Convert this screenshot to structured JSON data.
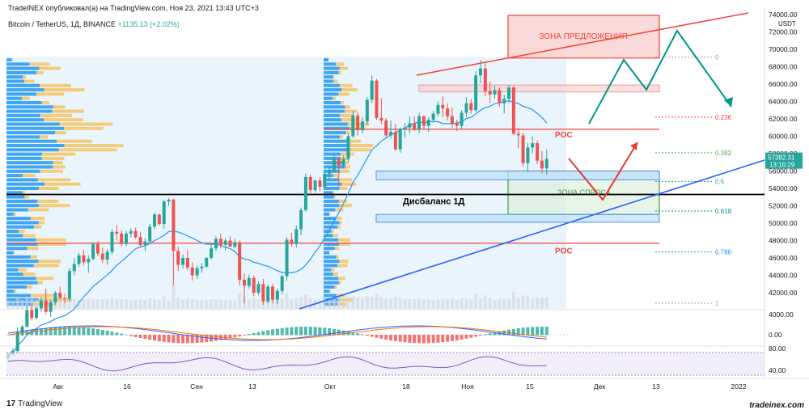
{
  "header": {
    "published_line": "TradeINEX опубликовал(а) на TradingView.com, Ноя 23, 2021 13:43 UTC+3",
    "symbol": "Bitcoin / TetherUS, 1Д, BINANCE",
    "change": "+1135.13 (+2.02%)"
  },
  "footer": {
    "brand": "TradingView",
    "watermark": "tradeinex.com"
  },
  "colors": {
    "up": "#26a69a",
    "down": "#ef5350",
    "ma": "#2196f3",
    "trend_red": "#f44336",
    "trend_blue": "#2962ff",
    "forecast_teal": "#009688",
    "forecast_red": "#e53935",
    "vp_blue": "#2196f3",
    "vp_yellow": "#f4c76a"
  },
  "chart_data": {
    "type": "candlestick",
    "price_axis": {
      "unit": "USDT",
      "ticks": [
        74000,
        72000,
        70000,
        68000,
        66000,
        64000,
        62000,
        60000,
        58000,
        56000,
        54000,
        52000,
        50000,
        48000,
        46000,
        44000,
        42000
      ],
      "tick_labels": [
        "74000.00",
        "72000.00",
        "70000.00",
        "68000.00",
        "66000.00",
        "64000.00",
        "62000.00",
        "60000.00",
        "58000.00",
        "56000.00",
        "54000.00",
        "52000.00",
        "50000.00",
        "48000.00",
        "46000.00",
        "44000.00",
        "42000.00"
      ]
    },
    "time_axis": [
      "Авг",
      "16",
      "Сен",
      "13",
      "Окт",
      "18",
      "Ноя",
      "15",
      "Дек",
      "13",
      "2022"
    ],
    "last_price": {
      "label": "57382.31",
      "countdown": "13:16:29",
      "value": 57382.31
    },
    "candles": [
      [
        34500,
        35100,
        34000,
        34900
      ],
      [
        34900,
        35600,
        34700,
        35300
      ],
      [
        35300,
        38000,
        35000,
        37500
      ],
      [
        37500,
        38300,
        37000,
        38100
      ],
      [
        38100,
        40500,
        38000,
        40000
      ],
      [
        40000,
        40700,
        38800,
        39100
      ],
      [
        39100,
        40400,
        38900,
        40200
      ],
      [
        40200,
        41500,
        39800,
        41100
      ],
      [
        41100,
        42500,
        39500,
        39800
      ],
      [
        39800,
        41200,
        39200,
        40900
      ],
      [
        40900,
        42200,
        40600,
        42000
      ],
      [
        42000,
        42700,
        41200,
        41400
      ],
      [
        41400,
        41900,
        40800,
        41300
      ],
      [
        41300,
        44800,
        41000,
        44500
      ],
      [
        44500,
        46000,
        44000,
        45300
      ],
      [
        45300,
        46600,
        45000,
        46300
      ],
      [
        46300,
        46900,
        45100,
        45500
      ],
      [
        45500,
        46300,
        44300,
        45900
      ],
      [
        45900,
        47800,
        45700,
        47600
      ],
      [
        47600,
        47900,
        46200,
        46500
      ],
      [
        46500,
        47200,
        45400,
        45800
      ],
      [
        45800,
        47000,
        45200,
        46700
      ],
      [
        46700,
        49300,
        46400,
        49000
      ],
      [
        49000,
        49800,
        48000,
        48800
      ],
      [
        48800,
        49200,
        47300,
        47600
      ],
      [
        47600,
        49100,
        47400,
        48800
      ],
      [
        48800,
        49400,
        48400,
        49100
      ],
      [
        49100,
        49500,
        48200,
        48400
      ],
      [
        48400,
        49000,
        47200,
        47500
      ],
      [
        47500,
        48300,
        46800,
        47900
      ],
      [
        47900,
        49900,
        47700,
        49600
      ],
      [
        49600,
        51200,
        49300,
        51000
      ],
      [
        51000,
        51100,
        49700,
        49900
      ],
      [
        49900,
        52700,
        49400,
        52500
      ],
      [
        52500,
        52900,
        52000,
        52700
      ],
      [
        52700,
        52800,
        42900,
        46800
      ],
      [
        46800,
        47300,
        44500,
        45200
      ],
      [
        45200,
        46400,
        44800,
        46000
      ],
      [
        46000,
        46900,
        44600,
        44900
      ],
      [
        44900,
        45500,
        43400,
        44000
      ],
      [
        44000,
        45100,
        43600,
        44800
      ],
      [
        44800,
        45400,
        44300,
        45000
      ],
      [
        45000,
        46100,
        44900,
        46000
      ],
      [
        46000,
        47600,
        45800,
        47100
      ],
      [
        47100,
        48500,
        46800,
        48200
      ],
      [
        48200,
        48800,
        47100,
        47500
      ],
      [
        47500,
        48300,
        46900,
        48000
      ],
      [
        48000,
        48500,
        47300,
        47300
      ],
      [
        47300,
        48200,
        47100,
        47800
      ],
      [
        47800,
        48000,
        42800,
        43500
      ],
      [
        43500,
        44200,
        40800,
        42800
      ],
      [
        42800,
        44100,
        42500,
        43700
      ],
      [
        43700,
        44000,
        41600,
        42000
      ],
      [
        42000,
        43300,
        41700,
        43000
      ],
      [
        43000,
        43600,
        40600,
        41000
      ],
      [
        41000,
        43000,
        40800,
        42700
      ],
      [
        42700,
        43000,
        40800,
        41200
      ],
      [
        41200,
        42500,
        40700,
        42200
      ],
      [
        42200,
        44000,
        41800,
        43900
      ],
      [
        43900,
        48400,
        43400,
        48100
      ],
      [
        48100,
        48900,
        47300,
        47600
      ],
      [
        47600,
        49700,
        47200,
        49300
      ],
      [
        49300,
        51800,
        48600,
        51500
      ],
      [
        51500,
        55700,
        51300,
        55300
      ],
      [
        55300,
        55600,
        53300,
        53800
      ],
      [
        53800,
        55000,
        53500,
        54900
      ],
      [
        54900,
        55300,
        53700,
        54200
      ],
      [
        54200,
        56200,
        53900,
        55700
      ],
      [
        55700,
        56500,
        54900,
        56100
      ],
      [
        56100,
        57800,
        55900,
        57400
      ],
      [
        57400,
        57600,
        54200,
        56600
      ],
      [
        56600,
        57800,
        56300,
        57400
      ],
      [
        57400,
        60300,
        57000,
        60000
      ],
      [
        60000,
        62900,
        59800,
        62400
      ],
      [
        62400,
        62700,
        60100,
        60700
      ],
      [
        60700,
        62200,
        60300,
        61700
      ],
      [
        61700,
        64500,
        61300,
        64200
      ],
      [
        64200,
        67000,
        63800,
        66400
      ],
      [
        66400,
        66600,
        61900,
        62100
      ],
      [
        62100,
        64400,
        61400,
        61800
      ],
      [
        61800,
        62100,
        59900,
        60100
      ],
      [
        60100,
        61800,
        59700,
        60500
      ],
      [
        60500,
        61400,
        58300,
        58500
      ],
      [
        58500,
        61000,
        58100,
        60800
      ],
      [
        60800,
        61500,
        59800,
        61000
      ],
      [
        61000,
        62300,
        60300,
        61500
      ],
      [
        61500,
        62300,
        60600,
        60800
      ],
      [
        60800,
        62700,
        60400,
        62300
      ],
      [
        62300,
        62400,
        60800,
        61200
      ],
      [
        61200,
        62200,
        60500,
        61900
      ],
      [
        61900,
        62900,
        61600,
        62600
      ],
      [
        62600,
        64000,
        62300,
        63600
      ],
      [
        63600,
        64600,
        62200,
        63200
      ],
      [
        63200,
        63800,
        61800,
        62300
      ],
      [
        62300,
        63300,
        61000,
        61500
      ],
      [
        61500,
        61900,
        60600,
        61200
      ],
      [
        61200,
        63000,
        60800,
        62700
      ],
      [
        62700,
        64500,
        62200,
        63800
      ],
      [
        63800,
        64300,
        62600,
        63000
      ],
      [
        63000,
        67500,
        62800,
        67000
      ],
      [
        67000,
        68800,
        66100,
        67800
      ],
      [
        67800,
        68500,
        64600,
        65200
      ],
      [
        65200,
        66300,
        63800,
        64800
      ],
      [
        64800,
        65800,
        64300,
        65300
      ],
      [
        65300,
        65600,
        63400,
        63800
      ],
      [
        63800,
        64800,
        62600,
        64300
      ],
      [
        64300,
        65900,
        63800,
        65600
      ],
      [
        65600,
        65800,
        60100,
        60300
      ],
      [
        60300,
        61000,
        58600,
        60100
      ],
      [
        60100,
        60400,
        56500,
        56900
      ],
      [
        56900,
        59200,
        55900,
        58700
      ],
      [
        58700,
        60000,
        58000,
        59200
      ],
      [
        59200,
        59500,
        56800,
        57200
      ],
      [
        57200,
        58300,
        55700,
        56300
      ],
      [
        56300,
        58500,
        55600,
        57400
      ]
    ],
    "annotations": {
      "supply_zone": {
        "label": "ЗОНА ПРЕДЛОЖЕНИЯ",
        "high": 73900,
        "low": 69000
      },
      "demand_zone": {
        "label": "ЗОНА СПРОСА",
        "high": 56000,
        "low": 51000
      },
      "poc_lines": [
        {
          "label": "POC",
          "price": 60800
        },
        {
          "label": "POC",
          "price": 47700
        }
      ],
      "imbalance": {
        "label": "Дисбаланс 1Д",
        "price": 53300
      },
      "imbalance_boxes": [
        {
          "high": 56000,
          "low": 55000
        },
        {
          "high": 51000,
          "low": 50100
        }
      ],
      "red_box": {
        "high": 65900,
        "low": 65100
      },
      "fib_levels": [
        {
          "label": "0",
          "price": 69100,
          "color": "#9e9e9e"
        },
        {
          "label": "0.236",
          "price": 62200,
          "color": "#f44336"
        },
        {
          "label": "0.382",
          "price": 58100,
          "color": "#4caf50"
        },
        {
          "label": "0.5",
          "price": 54800,
          "color": "#26a69a"
        },
        {
          "label": "0.618",
          "price": 51400,
          "color": "#009688"
        },
        {
          "label": "0.786",
          "price": 46700,
          "color": "#2196f3"
        },
        {
          "label": "1",
          "price": 40800,
          "color": "#9e9e9e"
        }
      ]
    },
    "macd_axis": [
      "4000.00",
      "0.00"
    ],
    "rsi_axis": [
      "80.00",
      "40.00"
    ]
  }
}
